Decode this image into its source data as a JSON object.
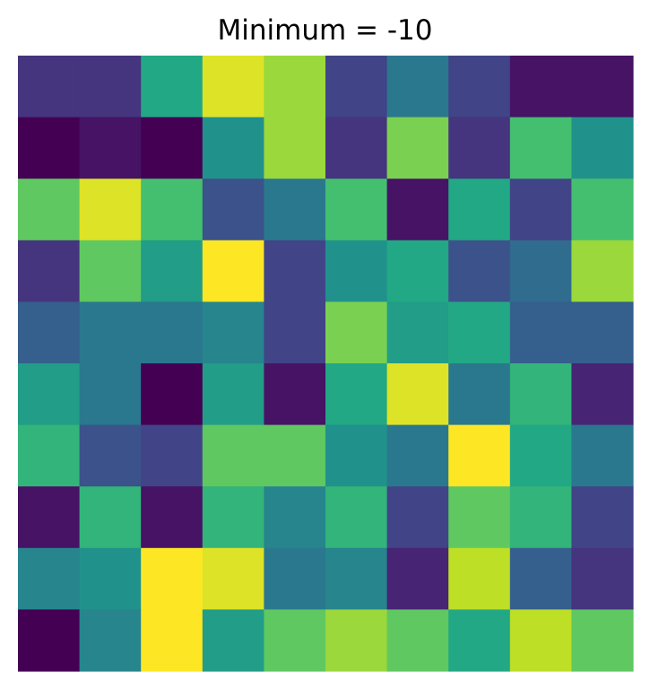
{
  "chart_data": {
    "type": "heatmap",
    "title": "Minimum = -10",
    "xlabel": "",
    "ylabel": "",
    "colormap": "viridis",
    "vmin": -10,
    "vmax": 10,
    "grid": false,
    "axes_visible": false,
    "n_rows": 10,
    "n_cols": 10,
    "values": [
      [
        -7,
        -7,
        2,
        9,
        7,
        -6,
        -2,
        -6,
        -9,
        -9
      ],
      [
        -10,
        -9,
        -10,
        0,
        7,
        -7,
        6,
        -7,
        4,
        0
      ],
      [
        5,
        9,
        4,
        -5,
        -2,
        4,
        -9,
        2,
        -6,
        4
      ],
      [
        -7,
        5,
        1,
        10,
        -6,
        0,
        2,
        -5,
        -3,
        7
      ],
      [
        -4,
        -2,
        -2,
        -1,
        -6,
        6,
        1,
        2,
        -4,
        -4
      ],
      [
        1,
        -2,
        -10,
        1,
        -9,
        2,
        9,
        -2,
        3,
        -8
      ],
      [
        3,
        -5,
        -6,
        5,
        5,
        0,
        -2,
        10,
        2,
        -2
      ],
      [
        -9,
        3,
        -9,
        3,
        -1,
        3,
        -6,
        5,
        3,
        -6
      ],
      [
        -1,
        0,
        10,
        9,
        -2,
        -1,
        -8,
        8,
        -4,
        -7
      ],
      [
        -10,
        -1,
        10,
        1,
        5,
        7,
        5,
        2,
        8,
        5
      ]
    ]
  }
}
